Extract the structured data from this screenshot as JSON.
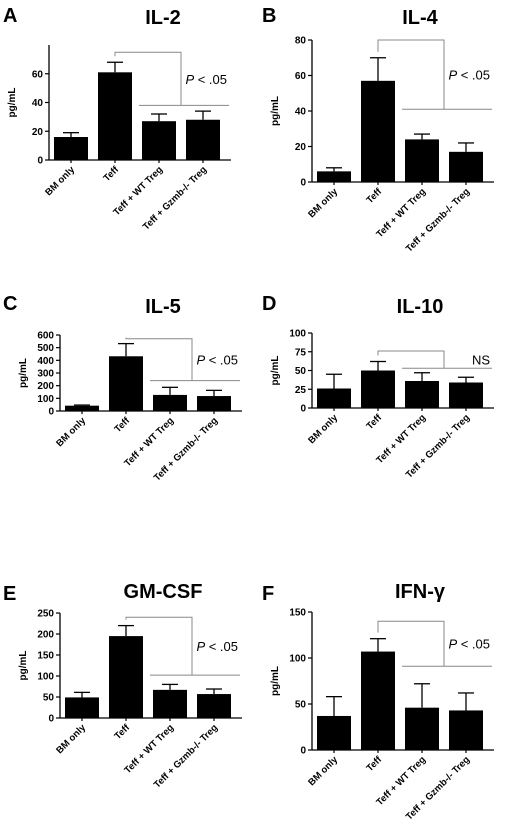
{
  "figure": {
    "categories": [
      "BM only",
      "Teff",
      "Teff + WT Treg",
      "Teff + Gzmb-/- Treg"
    ],
    "ylabel": "pg/mL"
  },
  "chart_data": [
    {
      "type": "bar",
      "panel": "A",
      "title": "IL-2",
      "ylabel": "pg/mL",
      "categories": [
        "BM only",
        "Teff",
        "Teff + WT Treg",
        "Teff + Gzmb-/- Treg"
      ],
      "values": [
        16,
        61,
        27,
        28
      ],
      "errors": [
        3,
        7,
        5,
        6
      ],
      "yticks": [
        0,
        20,
        40,
        60
      ],
      "ylim": [
        0,
        80
      ],
      "annotation": {
        "prefix": "P",
        "text": " < .05"
      },
      "bracket_top_y": 75,
      "bracket_low_y": 38
    },
    {
      "type": "bar",
      "panel": "B",
      "title": "IL-4",
      "ylabel": "pg/mL",
      "categories": [
        "BM only",
        "Teff",
        "Teff + WT Treg",
        "Teff + Gzmb-/- Treg"
      ],
      "values": [
        6,
        57,
        24,
        17
      ],
      "errors": [
        2,
        13,
        3,
        5
      ],
      "yticks": [
        0,
        20,
        40,
        60,
        80
      ],
      "ylim": [
        0,
        80
      ],
      "annotation": {
        "prefix": "P",
        "text": " < .05"
      },
      "bracket_top_y": 80,
      "bracket_low_y": 41
    },
    {
      "type": "bar",
      "panel": "C",
      "title": "IL-5",
      "ylabel": "pg/mL",
      "categories": [
        "BM only",
        "Teff",
        "Teff + WT Treg",
        "Teff + Gzmb-/- Treg"
      ],
      "values": [
        42,
        432,
        127,
        118
      ],
      "errors": [
        5,
        100,
        60,
        45
      ],
      "yticks": [
        0,
        100,
        200,
        300,
        400,
        500,
        600
      ],
      "ylim": [
        0,
        600
      ],
      "annotation": {
        "prefix": "P",
        "text": " < .05"
      },
      "bracket_top_y": 570,
      "bracket_low_y": 240
    },
    {
      "type": "bar",
      "panel": "D",
      "title": "IL-10",
      "ylabel": "pg/mL",
      "categories": [
        "BM only",
        "Teff",
        "Teff + WT Treg",
        "Teff + Gzmb-/- Treg"
      ],
      "values": [
        26,
        50,
        36,
        34
      ],
      "errors": [
        19,
        12,
        11,
        7
      ],
      "yticks": [
        0,
        25,
        50,
        75,
        100
      ],
      "ylim": [
        0,
        100
      ],
      "annotation": {
        "prefix": "",
        "text": "NS"
      },
      "bracket_top_y": 76,
      "bracket_low_y": 53
    },
    {
      "type": "bar",
      "panel": "E",
      "title": "GM-CSF",
      "ylabel": "pg/mL",
      "categories": [
        "BM only",
        "Teff",
        "Teff + WT Treg",
        "Teff + Gzmb-/- Treg"
      ],
      "values": [
        49,
        195,
        67,
        57
      ],
      "errors": [
        12,
        25,
        13,
        12
      ],
      "yticks": [
        0,
        50,
        100,
        150,
        200,
        250
      ],
      "ylim": [
        0,
        250
      ],
      "annotation": {
        "prefix": "P",
        "text": " < .05"
      },
      "bracket_top_y": 240,
      "bracket_low_y": 102
    },
    {
      "type": "bar",
      "panel": "F",
      "title": "IFN-γ",
      "ylabel": "pg/mL",
      "categories": [
        "BM only",
        "Teff",
        "Teff + WT Treg",
        "Teff + Gzmb-/- Treg"
      ],
      "values": [
        37,
        107,
        46,
        43
      ],
      "errors": [
        21,
        14,
        26,
        19
      ],
      "yticks": [
        0,
        50,
        100,
        150
      ],
      "ylim": [
        0,
        150
      ],
      "annotation": {
        "prefix": "P",
        "text": " < .05"
      },
      "bracket_top_y": 140,
      "bracket_low_y": 91
    }
  ]
}
